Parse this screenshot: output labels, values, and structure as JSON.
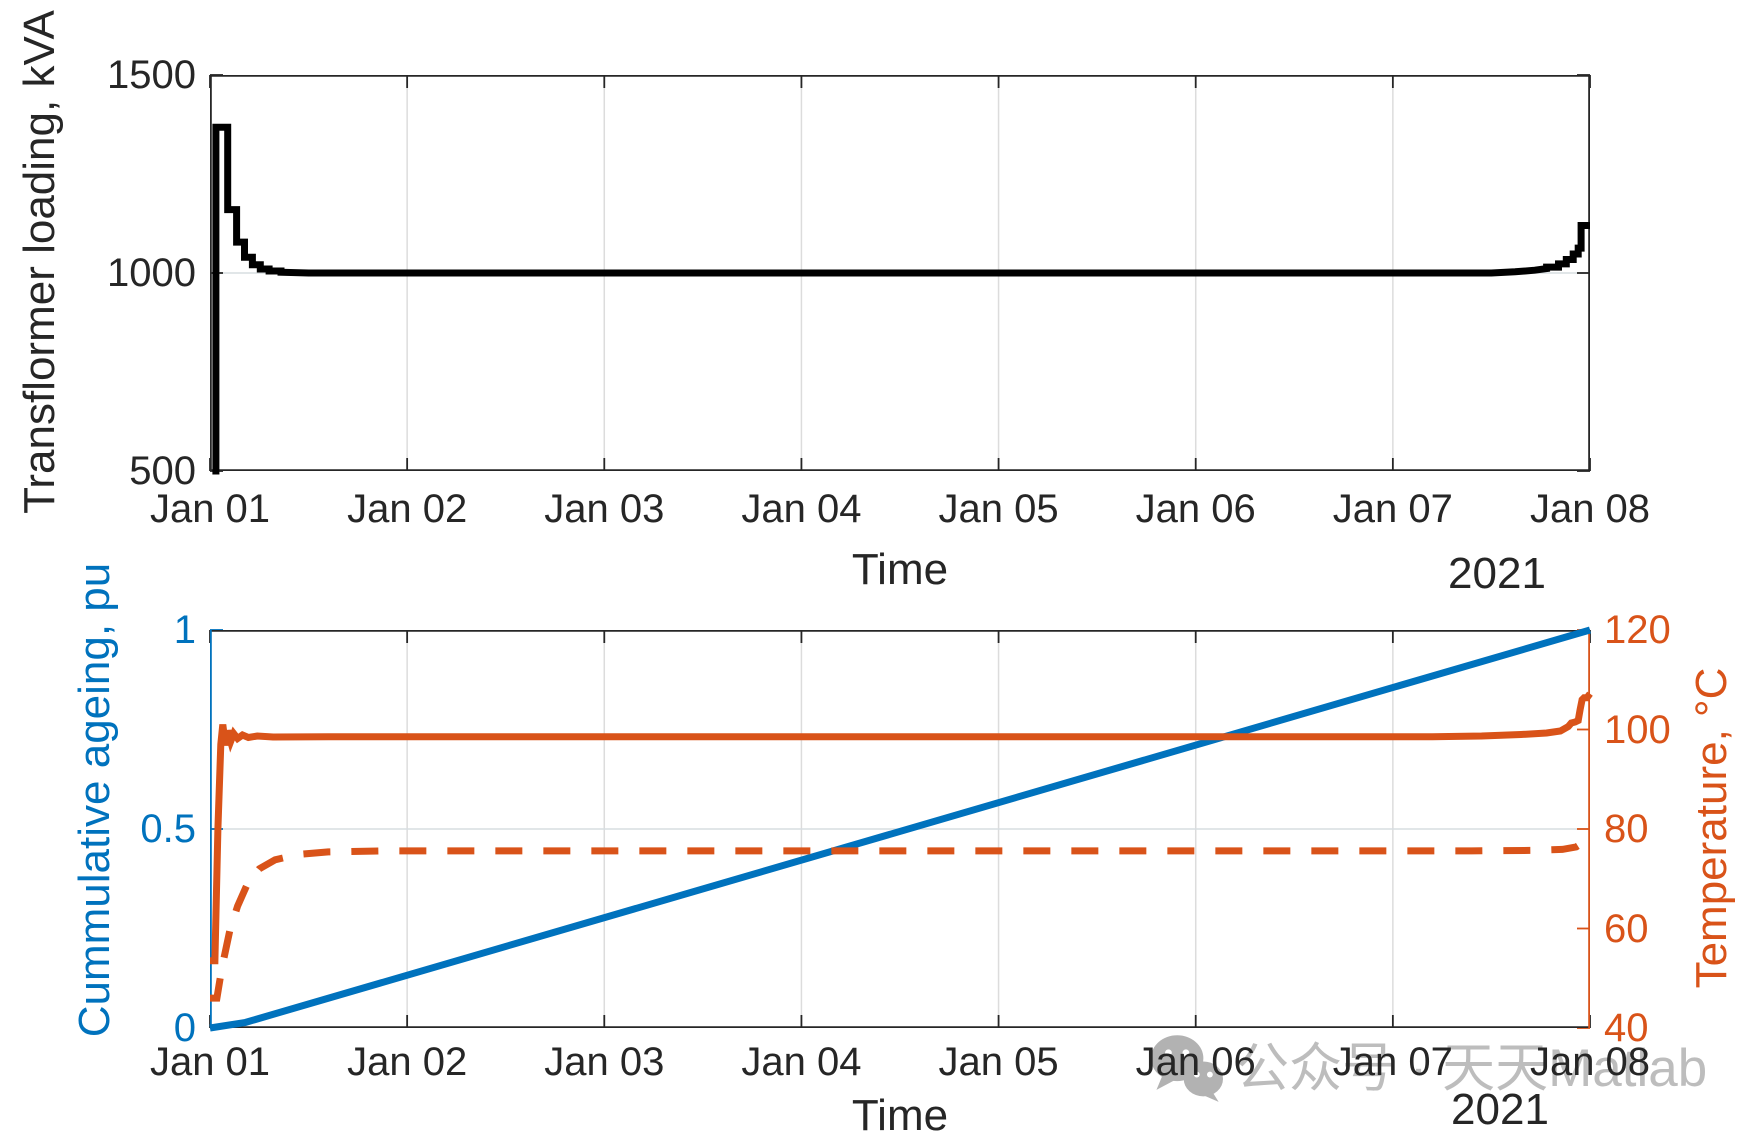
{
  "colors": {
    "background": "#ffffff",
    "axis": "#262626",
    "grid_vertical": "#dcdcdc",
    "grid_horizontal": "#d7dde1",
    "loading_line": "#000000",
    "ageing_blue": "#0072BD",
    "temperature_orange": "#D95319",
    "watermark_gray": "#bdbdbd"
  },
  "watermark": {
    "icon": "wechat-icon",
    "text": "公众号 · 天天Matlab"
  },
  "chart_data": [
    {
      "type": "line",
      "position": "top",
      "title": "",
      "xlabel": "Time",
      "year_label": "2021",
      "ylabel": "Transflormer loading, kVA",
      "x_tick_labels": [
        "Jan 01",
        "Jan 02",
        "Jan 03",
        "Jan 04",
        "Jan 05",
        "Jan 06",
        "Jan 07",
        "Jan 08"
      ],
      "x_tick_values": [
        0,
        1,
        2,
        3,
        4,
        5,
        6,
        7
      ],
      "y_tick_labels": [
        "500",
        "1000",
        "1500"
      ],
      "y_tick_values": [
        500,
        1000,
        1500
      ],
      "xlim": [
        0,
        7
      ],
      "ylim": [
        500,
        1500
      ],
      "grid": true,
      "axis_color": "#262626",
      "series": [
        {
          "name": "transformer-loading-kva",
          "color": "#000000",
          "line_style": "solid",
          "line_width": 7,
          "points": [
            [
              0.012,
              500
            ],
            [
              0.03,
              500
            ],
            [
              0.03,
              1368
            ],
            [
              0.09,
              1368
            ],
            [
              0.09,
              1160
            ],
            [
              0.135,
              1160
            ],
            [
              0.135,
              1078
            ],
            [
              0.175,
              1078
            ],
            [
              0.175,
              1040
            ],
            [
              0.215,
              1040
            ],
            [
              0.215,
              1021
            ],
            [
              0.255,
              1021
            ],
            [
              0.255,
              1010
            ],
            [
              0.3,
              1010
            ],
            [
              0.3,
              1005
            ],
            [
              0.36,
              1005
            ],
            [
              0.36,
              1002
            ],
            [
              0.5,
              1000
            ],
            [
              6.5,
              1000
            ],
            [
              6.62,
              1003
            ],
            [
              6.72,
              1007
            ],
            [
              6.78,
              1011
            ],
            [
              6.78,
              1015
            ],
            [
              6.84,
              1015
            ],
            [
              6.84,
              1023
            ],
            [
              6.88,
              1023
            ],
            [
              6.88,
              1034
            ],
            [
              6.915,
              1034
            ],
            [
              6.915,
              1048
            ],
            [
              6.94,
              1048
            ],
            [
              6.94,
              1063
            ],
            [
              6.955,
              1063
            ],
            [
              6.955,
              1120
            ],
            [
              7,
              1120
            ]
          ]
        }
      ]
    },
    {
      "type": "line",
      "position": "bottom",
      "title": "",
      "xlabel": "Time",
      "year_label": "2021",
      "x_tick_labels": [
        "Jan 01",
        "Jan 02",
        "Jan 03",
        "Jan 04",
        "Jan 05",
        "Jan 06",
        "Jan 07",
        "Jan 08"
      ],
      "x_tick_values": [
        0,
        1,
        2,
        3,
        4,
        5,
        6,
        7
      ],
      "xlim": [
        0,
        7
      ],
      "grid": true,
      "axis_color": "#262626",
      "left_axis": {
        "label": "Cummulative ageing, pu",
        "color": "#0072BD",
        "tick_labels": [
          "0",
          "0.5",
          "1"
        ],
        "tick_values": [
          0,
          0.5,
          1
        ],
        "lim": [
          0,
          1
        ]
      },
      "right_axis": {
        "label": "Temperature, °C",
        "color": "#D95319",
        "tick_labels": [
          "40",
          "60",
          "80",
          "100",
          "120"
        ],
        "tick_values": [
          40,
          60,
          80,
          100,
          120
        ],
        "lim": [
          40,
          120
        ]
      },
      "series": [
        {
          "name": "cumulative-ageing-pu",
          "axis": "left",
          "color": "#0072BD",
          "line_style": "solid",
          "line_width": 7,
          "points": [
            [
              0,
              0
            ],
            [
              0.18,
              0.014
            ],
            [
              7,
              1
            ]
          ]
        },
        {
          "name": "hot-spot-temperature",
          "axis": "right",
          "color": "#D95319",
          "line_style": "solid",
          "line_width": 7,
          "points": [
            [
              0,
              53.5
            ],
            [
              0.025,
              53.5
            ],
            [
              0.04,
              80
            ],
            [
              0.055,
              97
            ],
            [
              0.065,
              101
            ],
            [
              0.078,
              96.8
            ],
            [
              0.09,
              99.8
            ],
            [
              0.105,
              97.6
            ],
            [
              0.12,
              99.2
            ],
            [
              0.14,
              98.2
            ],
            [
              0.165,
              98.9
            ],
            [
              0.195,
              98.4
            ],
            [
              0.24,
              98.7
            ],
            [
              0.32,
              98.5
            ],
            [
              0.6,
              98.55
            ],
            [
              6.2,
              98.55
            ],
            [
              6.45,
              98.7
            ],
            [
              6.65,
              99.0
            ],
            [
              6.78,
              99.3
            ],
            [
              6.85,
              99.7
            ],
            [
              6.89,
              100.6
            ],
            [
              6.905,
              101.3
            ],
            [
              6.925,
              101.5
            ],
            [
              6.94,
              101.8
            ],
            [
              6.95,
              104
            ],
            [
              6.96,
              106
            ],
            [
              6.97,
              106.4
            ],
            [
              6.985,
              106.4
            ],
            [
              7,
              107.2
            ]
          ]
        },
        {
          "name": "top-oil-temperature",
          "axis": "right",
          "color": "#D95319",
          "line_style": "dashed",
          "line_width": 7,
          "points": [
            [
              0,
              46
            ],
            [
              0.035,
              46
            ],
            [
              0.06,
              52
            ],
            [
              0.1,
              59.5
            ],
            [
              0.14,
              64.5
            ],
            [
              0.19,
              69
            ],
            [
              0.25,
              72
            ],
            [
              0.33,
              73.8
            ],
            [
              0.45,
              74.9
            ],
            [
              0.6,
              75.4
            ],
            [
              0.9,
              75.6
            ],
            [
              6.4,
              75.6
            ],
            [
              6.7,
              75.7
            ],
            [
              6.86,
              75.9
            ],
            [
              6.93,
              76.4
            ],
            [
              6.97,
              77.4
            ],
            [
              7,
              78.6
            ]
          ]
        }
      ]
    }
  ]
}
